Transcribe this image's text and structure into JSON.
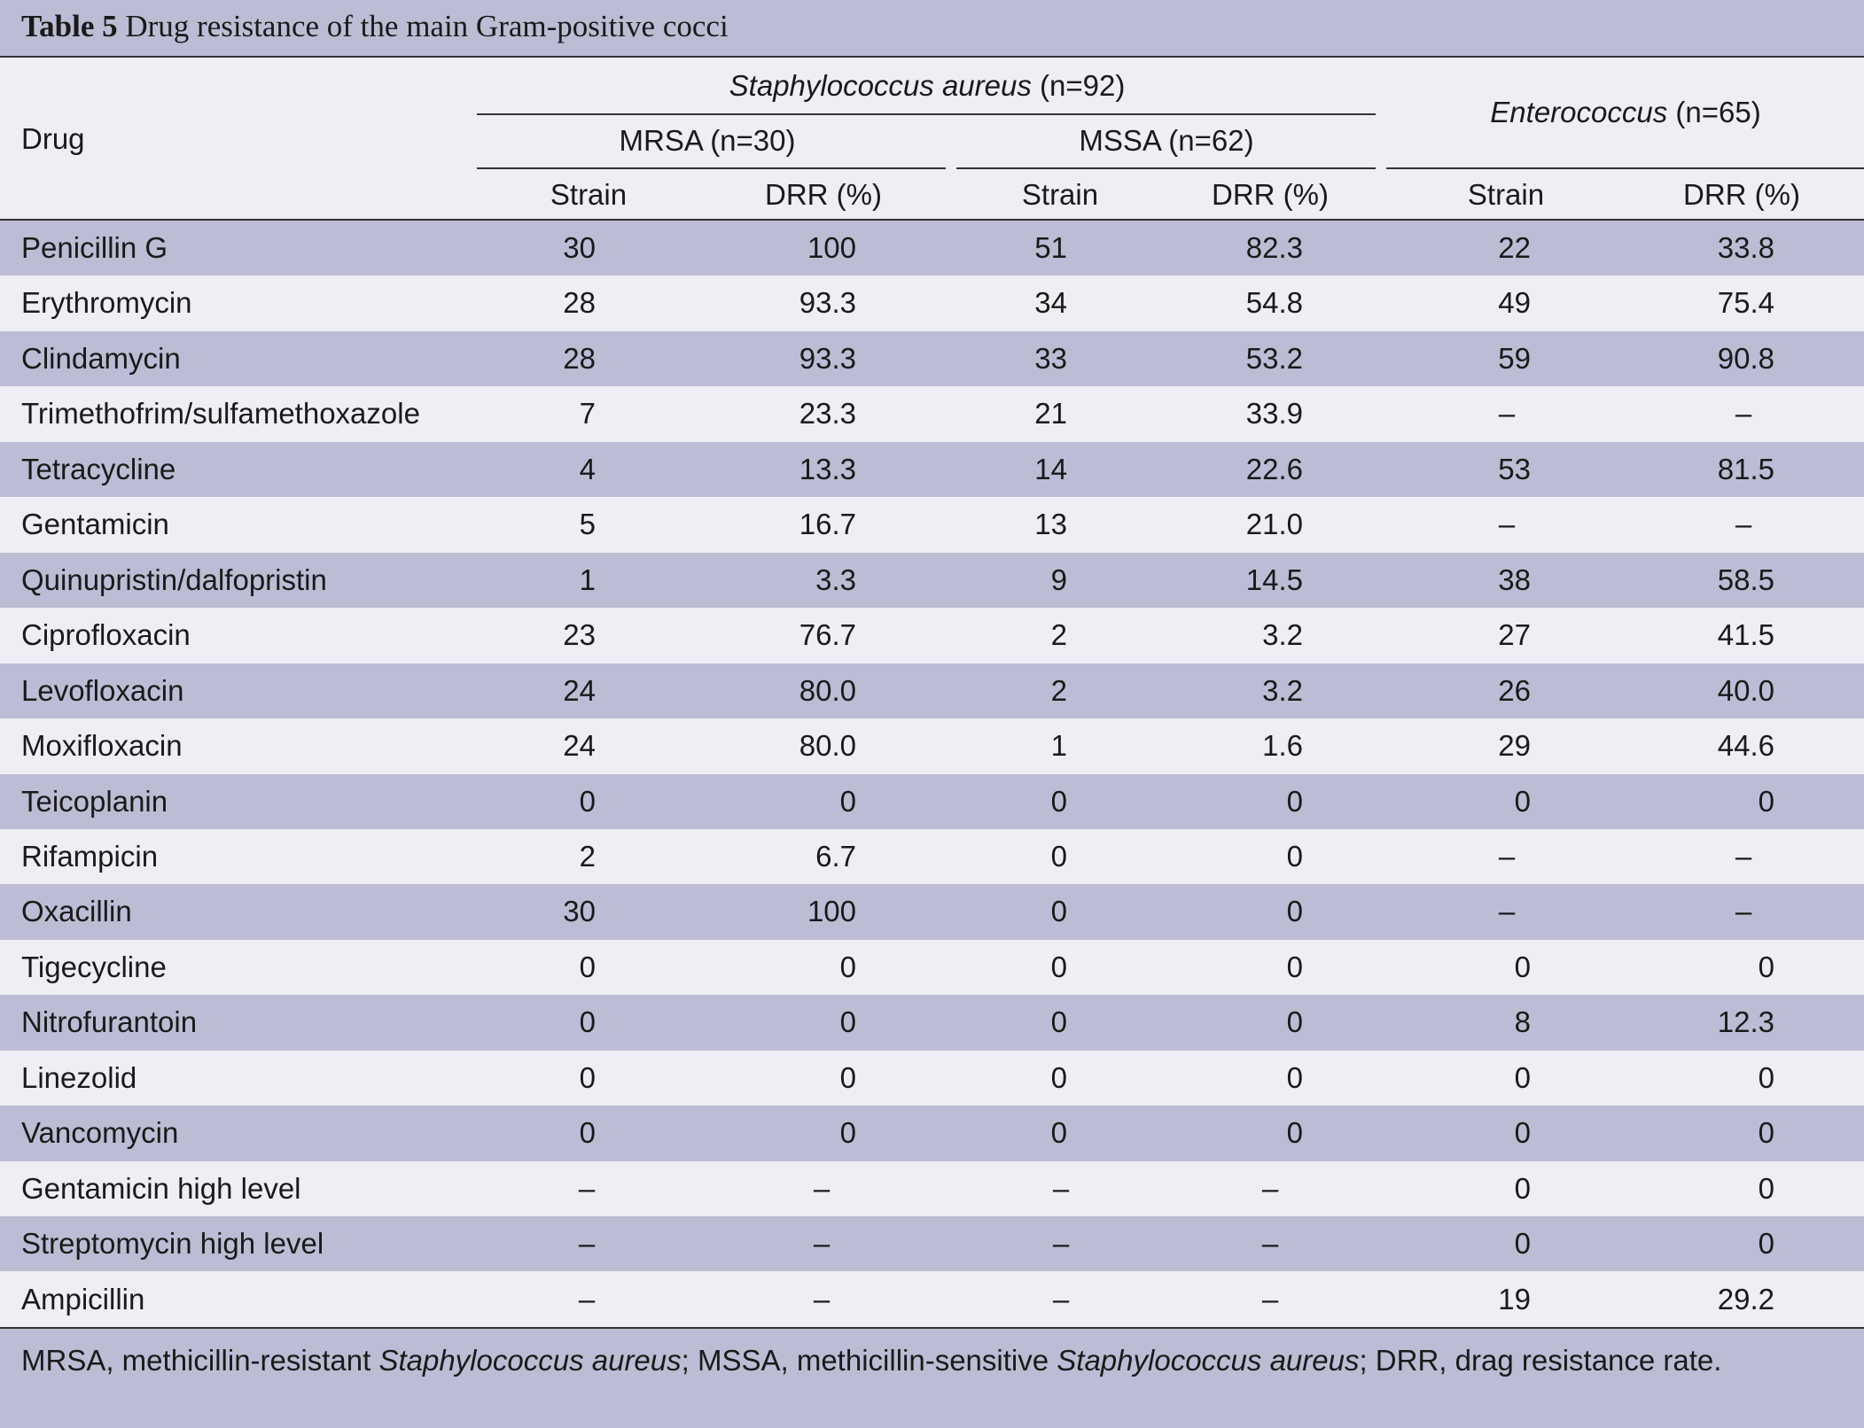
{
  "table": {
    "title_label": "Table 5",
    "title_text": "Drug resistance of the main Gram-positive cocci",
    "header": {
      "drug": "Drug",
      "group1_name": "Staphylococcus aureus",
      "group1_n": "(n=92)",
      "group2_name": "Enterococcus",
      "group2_n": "(n=65)",
      "sub1": "MRSA (n=30)",
      "sub2": "MSSA (n=62)",
      "strain": "Strain",
      "drr": "DRR (%)"
    },
    "rows": [
      {
        "drug": "Penicillin G",
        "mrsa_strain": "30",
        "mrsa_drr": "100",
        "mssa_strain": "51",
        "mssa_drr": "82.3",
        "ent_strain": "22",
        "ent_drr": "33.8"
      },
      {
        "drug": "Erythromycin",
        "mrsa_strain": "28",
        "mrsa_drr": "93.3",
        "mssa_strain": "34",
        "mssa_drr": "54.8",
        "ent_strain": "49",
        "ent_drr": "75.4"
      },
      {
        "drug": "Clindamycin",
        "mrsa_strain": "28",
        "mrsa_drr": "93.3",
        "mssa_strain": "33",
        "mssa_drr": "53.2",
        "ent_strain": "59",
        "ent_drr": "90.8"
      },
      {
        "drug": "Trimethofrim/sulfamethoxazole",
        "mrsa_strain": "7",
        "mrsa_drr": "23.3",
        "mssa_strain": "21",
        "mssa_drr": "33.9",
        "ent_strain": "–",
        "ent_drr": "–"
      },
      {
        "drug": "Tetracycline",
        "mrsa_strain": "4",
        "mrsa_drr": "13.3",
        "mssa_strain": "14",
        "mssa_drr": "22.6",
        "ent_strain": "53",
        "ent_drr": "81.5"
      },
      {
        "drug": "Gentamicin",
        "mrsa_strain": "5",
        "mrsa_drr": "16.7",
        "mssa_strain": "13",
        "mssa_drr": "21.0",
        "ent_strain": "–",
        "ent_drr": "–"
      },
      {
        "drug": "Quinupristin/dalfopristin",
        "mrsa_strain": "1",
        "mrsa_drr": "3.3",
        "mssa_strain": "9",
        "mssa_drr": "14.5",
        "ent_strain": "38",
        "ent_drr": "58.5"
      },
      {
        "drug": "Ciprofloxacin",
        "mrsa_strain": "23",
        "mrsa_drr": "76.7",
        "mssa_strain": "2",
        "mssa_drr": "3.2",
        "ent_strain": "27",
        "ent_drr": "41.5"
      },
      {
        "drug": "Levofloxacin",
        "mrsa_strain": "24",
        "mrsa_drr": "80.0",
        "mssa_strain": "2",
        "mssa_drr": "3.2",
        "ent_strain": "26",
        "ent_drr": "40.0"
      },
      {
        "drug": "Moxifloxacin",
        "mrsa_strain": "24",
        "mrsa_drr": "80.0",
        "mssa_strain": "1",
        "mssa_drr": "1.6",
        "ent_strain": "29",
        "ent_drr": "44.6"
      },
      {
        "drug": "Teicoplanin",
        "mrsa_strain": "0",
        "mrsa_drr": "0",
        "mssa_strain": "0",
        "mssa_drr": "0",
        "ent_strain": "0",
        "ent_drr": "0"
      },
      {
        "drug": "Rifampicin",
        "mrsa_strain": "2",
        "mrsa_drr": "6.7",
        "mssa_strain": "0",
        "mssa_drr": "0",
        "ent_strain": "–",
        "ent_drr": "–"
      },
      {
        "drug": "Oxacillin",
        "mrsa_strain": "30",
        "mrsa_drr": "100",
        "mssa_strain": "0",
        "mssa_drr": "0",
        "ent_strain": "–",
        "ent_drr": "–"
      },
      {
        "drug": "Tigecycline",
        "mrsa_strain": "0",
        "mrsa_drr": "0",
        "mssa_strain": "0",
        "mssa_drr": "0",
        "ent_strain": "0",
        "ent_drr": "0"
      },
      {
        "drug": "Nitrofurantoin",
        "mrsa_strain": "0",
        "mrsa_drr": "0",
        "mssa_strain": "0",
        "mssa_drr": "0",
        "ent_strain": "8",
        "ent_drr": "12.3"
      },
      {
        "drug": "Linezolid",
        "mrsa_strain": "0",
        "mrsa_drr": "0",
        "mssa_strain": "0",
        "mssa_drr": "0",
        "ent_strain": "0",
        "ent_drr": "0"
      },
      {
        "drug": "Vancomycin",
        "mrsa_strain": "0",
        "mrsa_drr": "0",
        "mssa_strain": "0",
        "mssa_drr": "0",
        "ent_strain": "0",
        "ent_drr": "0"
      },
      {
        "drug": "Gentamicin high level",
        "mrsa_strain": "–",
        "mrsa_drr": "–",
        "mssa_strain": "–",
        "mssa_drr": "–",
        "ent_strain": "0",
        "ent_drr": "0"
      },
      {
        "drug": "Streptomycin high level",
        "mrsa_strain": "–",
        "mrsa_drr": "–",
        "mssa_strain": "–",
        "mssa_drr": "–",
        "ent_strain": "0",
        "ent_drr": "0"
      },
      {
        "drug": "Ampicillin",
        "mrsa_strain": "–",
        "mrsa_drr": "–",
        "mssa_strain": "–",
        "mssa_drr": "–",
        "ent_strain": "19",
        "ent_drr": "29.2"
      }
    ],
    "footnote": {
      "p1": "MRSA, methicillin-resistant ",
      "i1": "Staphylococcus aureus",
      "p2": "; MSSA, methicillin-sensitive ",
      "i2": "Staphylococcus aureus",
      "p3": "; DRR, drag resistance rate."
    }
  }
}
